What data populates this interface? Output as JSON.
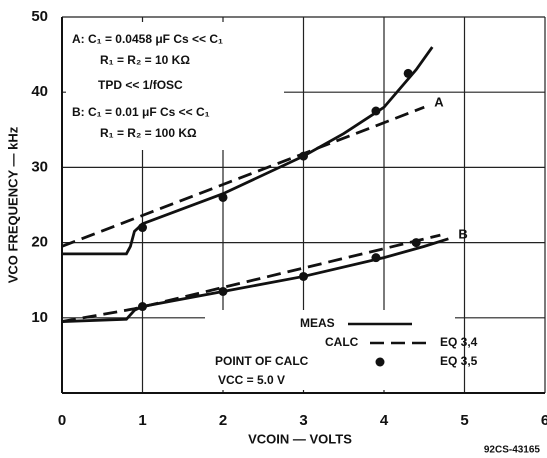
{
  "chart_data": {
    "type": "line",
    "y_label": "VCO FREQUENCY — kHz",
    "x_label": "VCOIN — VOLTS",
    "footnote": "92CS-43165",
    "xlim": [
      0,
      6
    ],
    "xticks": [
      0,
      1,
      2,
      3,
      4,
      5,
      6
    ],
    "ylim": [
      0,
      50
    ],
    "yticks": [
      10,
      20,
      30,
      40,
      50
    ],
    "grid": true,
    "annotations": [
      "A: C₁ = 0.0458 μF   Cs << C₁",
      "R₁ = R₂ = 10 KΩ",
      "TPD << 1/fOSC",
      "B: C₁ = 0.01 μF   Cs << C₁",
      "R₁ = R₂ = 100 KΩ"
    ],
    "series": [
      {
        "style": "solid",
        "color": "#111111",
        "x": [
          0,
          0.8,
          0.85,
          0.9,
          1,
          2,
          3,
          3.5,
          4,
          4.4,
          4.6
        ],
        "values": [
          18.5,
          18.5,
          19.5,
          21.5,
          22.5,
          26.5,
          31.5,
          34.5,
          38,
          43,
          46
        ]
      },
      {
        "style": "dashed",
        "color": "#111111",
        "label": "A",
        "x": [
          0,
          4.5
        ],
        "values": [
          19.5,
          38
        ]
      },
      {
        "style": "solid",
        "color": "#111111",
        "label": "B",
        "x": [
          0,
          0.8,
          0.9,
          1,
          2,
          3,
          4,
          4.5,
          4.8
        ],
        "values": [
          9.5,
          9.8,
          11,
          11.5,
          13.5,
          15.5,
          18,
          19.5,
          20.5
        ]
      },
      {
        "style": "dashed",
        "color": "#111111",
        "x": [
          0,
          0.9,
          4.7
        ],
        "values": [
          9.5,
          11.2,
          21
        ]
      },
      {
        "style": "dots",
        "color": "#111111",
        "x": [
          1,
          2,
          3,
          3.9,
          4.3,
          1,
          2,
          3,
          3.9,
          4.4
        ],
        "values": [
          22,
          26,
          31.5,
          37.5,
          42.5,
          11.5,
          13.5,
          15.5,
          18,
          20
        ]
      }
    ],
    "legend": [
      {
        "label": "MEAS",
        "style": "solid"
      },
      {
        "label": "CALC",
        "style": "dashed",
        "note": "EQ 3,4"
      },
      {
        "label": "POINT OF CALC",
        "style": "dots",
        "note": "EQ 3,5"
      }
    ],
    "condition": "VCC = 5.0 V"
  }
}
